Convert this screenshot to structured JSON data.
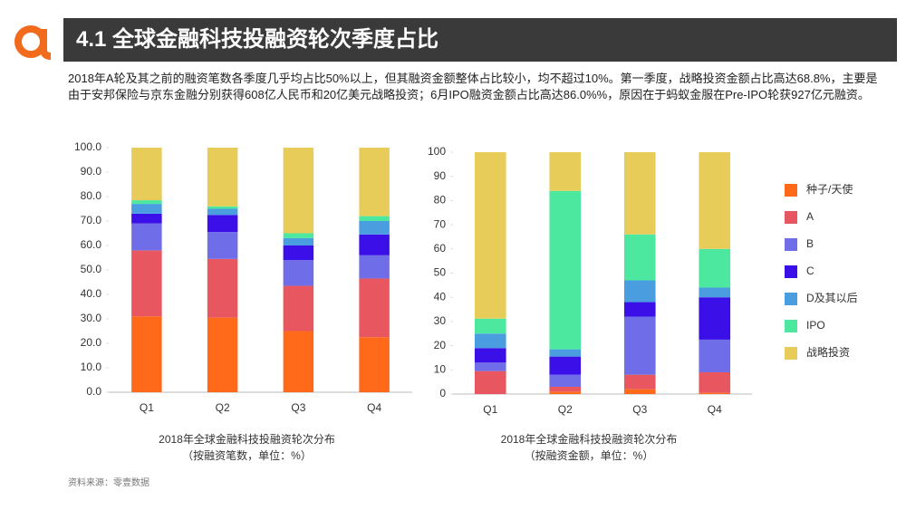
{
  "header": {
    "title": "4.1 全球金融科技投融资轮次季度占比"
  },
  "text": {
    "description": "2018年A轮及其之前的融资笔数各季度几乎均占比50%以上，但其融资金额整体占比较小，均不超过10%。第一季度，战略投资金额占比高达68.8%，主要是由于安邦保险与京东金融分别获得608亿人民币和20亿美元战略投资；6月IPO融资金额占比高达86.0%%，原因在于蚂蚁金服在Pre-IPO轮获927亿元融资。"
  },
  "source": "资料来源：零壹数据",
  "chart_data": [
    {
      "type": "bar",
      "stacked": true,
      "title": "2018年全球金融科技投融资轮次分布",
      "subtitle": "（按融资笔数，单位：%）",
      "categories": [
        "Q1",
        "Q2",
        "Q3",
        "Q4"
      ],
      "ylim": [
        0,
        100
      ],
      "yticks": [
        {
          "value": 0,
          "label": "0.0"
        },
        {
          "value": 10,
          "label": "10.0"
        },
        {
          "value": 20,
          "label": "20.0"
        },
        {
          "value": 30,
          "label": "30.0"
        },
        {
          "value": 40,
          "label": "40.0"
        },
        {
          "value": 50,
          "label": "50.0"
        },
        {
          "value": 60,
          "label": "60.0"
        },
        {
          "value": 70,
          "label": "70.0"
        },
        {
          "value": 80,
          "label": "80.0"
        },
        {
          "value": 90,
          "label": "90.0"
        },
        {
          "value": 100,
          "label": "100.0"
        }
      ],
      "series": [
        {
          "color": "#ff6a1a",
          "values": [
            31,
            30.5,
            25,
            22.5
          ]
        },
        {
          "color": "#e8575f",
          "values": [
            27,
            24,
            18.5,
            24
          ]
        },
        {
          "color": "#6f6ee8",
          "values": [
            11,
            11,
            10.5,
            9.5
          ]
        },
        {
          "color": "#3b0fe8",
          "values": [
            4,
            7,
            6,
            8.5
          ]
        },
        {
          "color": "#4a9ee0",
          "values": [
            4,
            2.5,
            3,
            5.5
          ]
        },
        {
          "color": "#4de8a0",
          "values": [
            1.5,
            1,
            2,
            2
          ]
        },
        {
          "color": "#e8cc5a",
          "values": [
            21.5,
            24,
            35,
            28
          ]
        }
      ]
    },
    {
      "type": "bar",
      "stacked": true,
      "title": "2018年全球金融科技投融资轮次分布",
      "subtitle": "（按融资金额，单位：%）",
      "categories": [
        "Q1",
        "Q2",
        "Q3",
        "Q4"
      ],
      "ylim": [
        0,
        100
      ],
      "yticks": [
        0,
        10,
        20,
        30,
        40,
        50,
        60,
        70,
        80,
        90,
        100
      ],
      "legend": "right",
      "series": [
        {
          "name": "种子/天使",
          "color": "#ff6a1a",
          "values": [
            0,
            1,
            2,
            0.5
          ]
        },
        {
          "name": "A",
          "color": "#e8575f",
          "values": [
            9.5,
            2,
            6,
            8.5
          ]
        },
        {
          "name": "B",
          "color": "#6f6ee8",
          "values": [
            3.5,
            5,
            24,
            13.5
          ]
        },
        {
          "name": "C",
          "color": "#3b0fe8",
          "values": [
            6,
            7.5,
            6,
            17.5
          ]
        },
        {
          "name": "D及其以后",
          "color": "#4a9ee0",
          "values": [
            6,
            3,
            9,
            4
          ]
        },
        {
          "name": "IPO",
          "color": "#4de8a0",
          "values": [
            6.2,
            65.5,
            19,
            16
          ]
        },
        {
          "name": "战略投资",
          "color": "#e8cc5a",
          "values": [
            68.8,
            16,
            34,
            40
          ]
        }
      ]
    }
  ]
}
